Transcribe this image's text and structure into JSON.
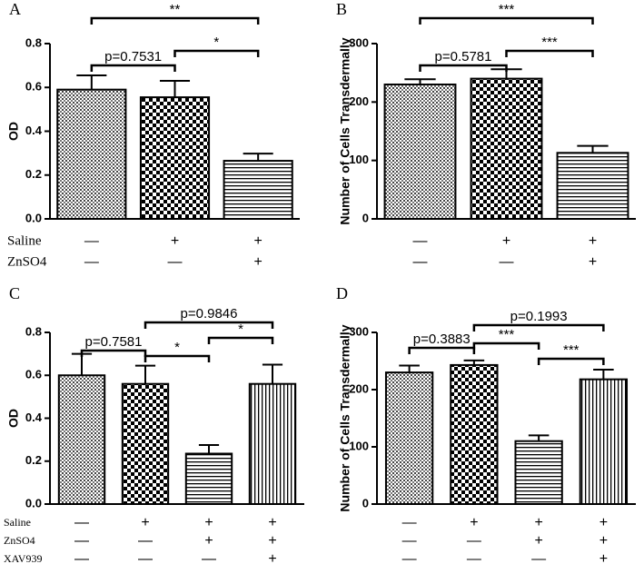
{
  "chart_data": [
    {
      "type": "bar",
      "panel": "A",
      "ylabel": "OD",
      "ylim": [
        0,
        0.8
      ],
      "yticks": [
        {
          "value": 0,
          "label": "0.0"
        },
        0.2,
        0.4,
        0.6,
        0.8
      ],
      "values": [
        0.59,
        0.555,
        0.265
      ],
      "errors": [
        0.065,
        0.075,
        0.033
      ],
      "patterns": [
        "dots",
        "checker",
        "hlines"
      ],
      "comparisons": [
        {
          "from": 0,
          "to": 1,
          "label": "p=0.7531"
        },
        {
          "from": 1,
          "to": 2,
          "label": "*"
        },
        {
          "from": 0,
          "to": 2,
          "label": "**"
        }
      ],
      "treatments": [
        {
          "label": "Saline",
          "marks": [
            "—",
            "+",
            "+"
          ]
        },
        {
          "label": "ZnSO4",
          "marks": [
            "—",
            "—",
            "+"
          ]
        }
      ]
    },
    {
      "type": "bar",
      "panel": "B",
      "ylabel": "Number of Cells Transdermally",
      "ylim": [
        0,
        300
      ],
      "yticks": [
        0,
        100,
        200,
        300
      ],
      "values": [
        230,
        240,
        113
      ],
      "errors": [
        9,
        16,
        12
      ],
      "patterns": [
        "dots",
        "checker",
        "hlines"
      ],
      "comparisons": [
        {
          "from": 0,
          "to": 1,
          "label": "p=0.5781"
        },
        {
          "from": 1,
          "to": 2,
          "label": "***"
        },
        {
          "from": 0,
          "to": 2,
          "label": "***"
        }
      ],
      "treatments": [
        {
          "marks": [
            "—",
            "+",
            "+"
          ]
        },
        {
          "marks": [
            "—",
            "—",
            "+"
          ]
        }
      ]
    },
    {
      "type": "bar",
      "panel": "C",
      "ylabel": "OD",
      "ylim": [
        0,
        0.8
      ],
      "yticks": [
        {
          "value": 0,
          "label": "0.0"
        },
        0.2,
        0.4,
        0.6,
        0.8
      ],
      "values": [
        0.6,
        0.56,
        0.235,
        0.56
      ],
      "errors": [
        0.1,
        0.085,
        0.04,
        0.09
      ],
      "patterns": [
        "dots",
        "checker",
        "hlines",
        "vlines"
      ],
      "comparisons": [
        {
          "from": 0,
          "to": 1,
          "label": "p=0.7581"
        },
        {
          "from": 1,
          "to": 2,
          "label": "*"
        },
        {
          "from": 2,
          "to": 3,
          "label": "*"
        },
        {
          "from": 1,
          "to": 3,
          "label": "p=0.9846"
        }
      ],
      "treatments": [
        {
          "label": "Saline",
          "marks": [
            "—",
            "+",
            "+",
            "+"
          ]
        },
        {
          "label": "ZnSO4",
          "marks": [
            "—",
            "—",
            "+",
            "+"
          ]
        },
        {
          "label": "XAV939",
          "marks": [
            "—",
            "—",
            "—",
            "+"
          ]
        }
      ]
    },
    {
      "type": "bar",
      "panel": "D",
      "ylabel": "Number of Cells Transdermally",
      "ylim": [
        0,
        300
      ],
      "yticks": [
        0,
        100,
        200,
        300
      ],
      "values": [
        230,
        243,
        110,
        218
      ],
      "errors": [
        12,
        8,
        10,
        17
      ],
      "patterns": [
        "dots",
        "checker",
        "hlines",
        "vlines"
      ],
      "comparisons": [
        {
          "from": 0,
          "to": 1,
          "label": "p=0.3883"
        },
        {
          "from": 1,
          "to": 2,
          "label": "***"
        },
        {
          "from": 2,
          "to": 3,
          "label": "***"
        },
        {
          "from": 1,
          "to": 3,
          "label": "p=0.1993"
        }
      ],
      "treatments": [
        {
          "marks": [
            "—",
            "+",
            "+",
            "+"
          ]
        },
        {
          "marks": [
            "—",
            "—",
            "+",
            "+"
          ]
        },
        {
          "marks": [
            "—",
            "—",
            "—",
            "+"
          ]
        }
      ]
    }
  ]
}
